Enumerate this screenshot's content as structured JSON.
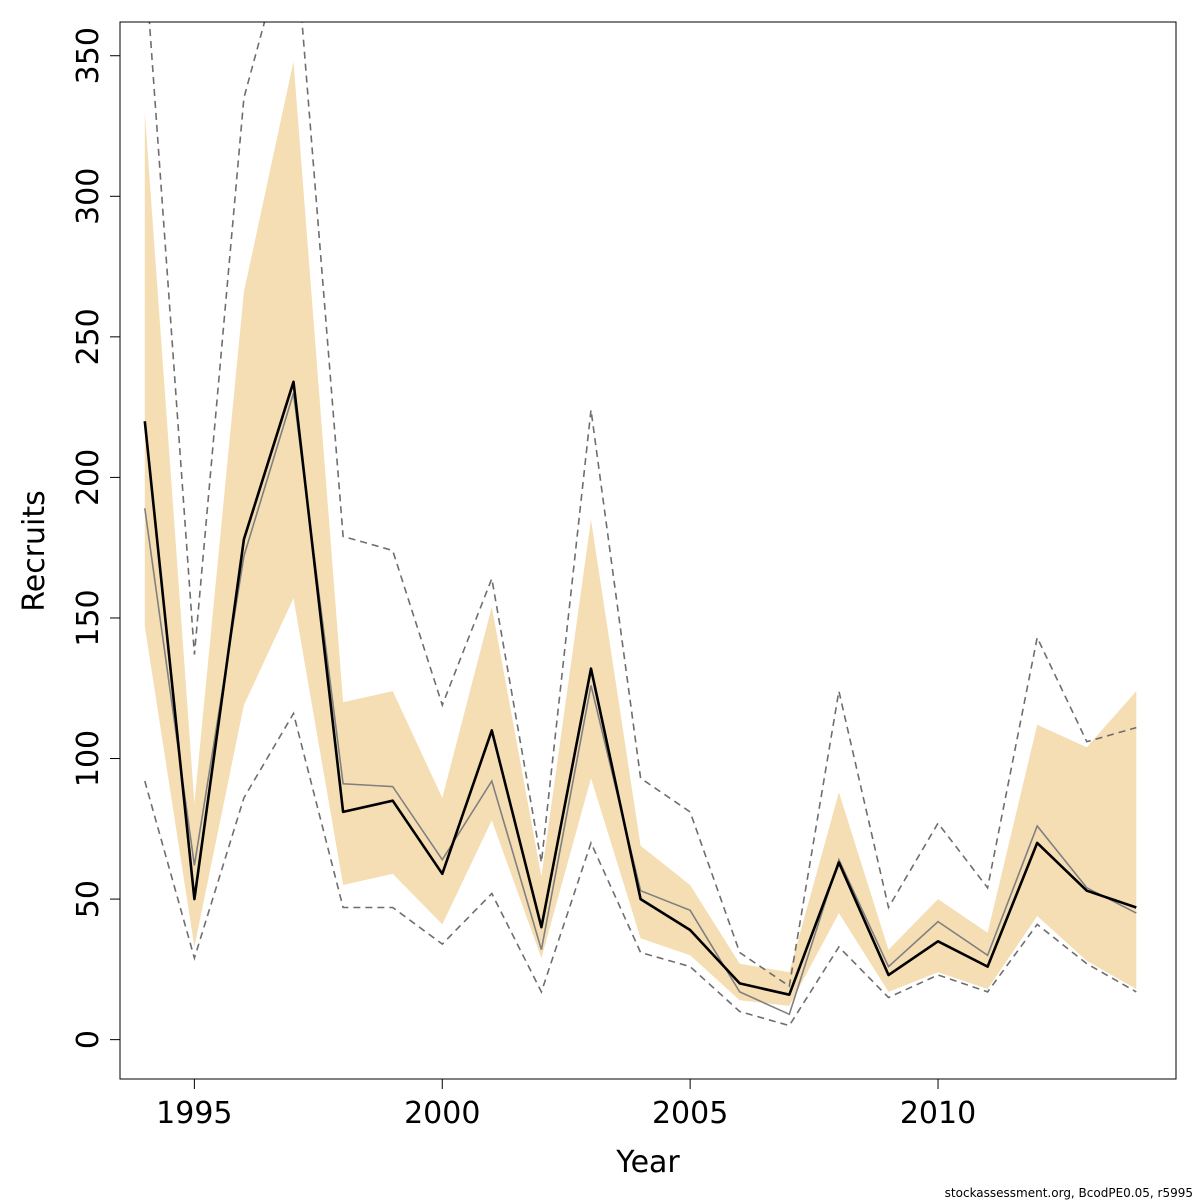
{
  "chart_data": {
    "type": "line",
    "title": "",
    "xlabel": "Year",
    "ylabel": "Recruits",
    "xlim": [
      1993.5,
      2014.8
    ],
    "ylim": [
      -14,
      362
    ],
    "x_ticks": [
      1995,
      2000,
      2005,
      2010
    ],
    "y_ticks": [
      0,
      50,
      100,
      150,
      200,
      250,
      300,
      350
    ],
    "grid": false,
    "legend": "none",
    "x": [
      1994,
      1995,
      1996,
      1997,
      1998,
      1999,
      2000,
      2001,
      2002,
      2003,
      2004,
      2005,
      2006,
      2007,
      2008,
      2009,
      2010,
      2011,
      2012,
      2013,
      2014
    ],
    "series": [
      {
        "role": "band",
        "color": "#f5deb3",
        "lower": [
          147,
          33,
          119,
          157,
          55,
          59,
          41,
          78,
          29,
          93,
          36,
          30,
          14,
          12,
          45,
          17,
          24,
          18,
          44,
          28,
          18
        ],
        "upper": [
          330,
          84,
          266,
          348,
          120,
          124,
          86,
          154,
          58,
          185,
          69,
          55,
          27,
          24,
          88,
          32,
          50,
          38,
          112,
          104,
          124
        ]
      },
      {
        "role": "dashed-upper",
        "color": "#6e6e6e",
        "values": [
          385,
          137,
          335,
          400,
          179,
          174,
          119,
          164,
          63,
          224,
          93,
          81,
          31,
          19,
          124,
          47,
          77,
          54,
          143,
          106,
          111
        ]
      },
      {
        "role": "dashed-lower",
        "color": "#6e6e6e",
        "values": [
          92,
          29,
          86,
          116,
          47,
          47,
          34,
          52,
          17,
          70,
          31,
          26,
          10,
          5,
          33,
          15,
          23,
          17,
          41,
          27,
          17
        ]
      },
      {
        "role": "median",
        "color": "#808080",
        "values": [
          189,
          62,
          172,
          230,
          91,
          90,
          64,
          92,
          32,
          126,
          53,
          46,
          17,
          9,
          64,
          26,
          42,
          30,
          76,
          54,
          45
        ]
      },
      {
        "role": "estimate",
        "color": "#000000",
        "values": [
          220,
          50,
          178,
          234,
          81,
          85,
          59,
          110,
          40,
          132,
          50,
          39,
          20,
          16,
          63,
          23,
          35,
          26,
          70,
          53,
          47
        ]
      }
    ]
  },
  "footer": {
    "text": "stockassessment.org, BcodPE0.05, r5995"
  }
}
